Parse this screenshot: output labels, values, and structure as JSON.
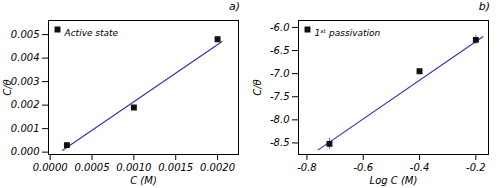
{
  "chart_data": [
    {
      "type": "scatter",
      "title": "a)",
      "xlabel": "C (M)",
      "ylabel": "C/θ",
      "series": [
        {
          "type": "line",
          "color": "#3333bb",
          "x": [
            0.00015,
            0.00205
          ],
          "values": [
            8e-05,
            0.0047
          ]
        },
        {
          "name": "Active state",
          "type": "scatter",
          "marker": "square",
          "color": "#111111",
          "x": [
            0.0002,
            0.001,
            0.002
          ],
          "values": [
            0.0003,
            0.0019,
            0.0048
          ],
          "errors": [
            8e-05,
            5e-05,
            0.00012
          ],
          "error_color": "#bb44bb"
        }
      ],
      "xlim": [
        -2e-05,
        0.00225
      ],
      "ylim": [
        -0.0001,
        0.0056
      ],
      "xticks": [
        {
          "value": 0.0,
          "label": "0.0000"
        },
        {
          "value": 0.0005,
          "label": "0.0005"
        },
        {
          "value": 0.001,
          "label": "0.0010"
        },
        {
          "value": 0.0015,
          "label": "0.0015"
        },
        {
          "value": 0.002,
          "label": "0.0020"
        }
      ],
      "yticks": [
        {
          "value": 0.0,
          "label": "0.000"
        },
        0.001,
        0.002,
        0.003,
        0.004,
        0.005
      ],
      "legend": "upper left",
      "grid": false
    },
    {
      "type": "scatter",
      "title": "b)",
      "xlabel": "Log C (M)",
      "ylabel": "C/θ",
      "series": [
        {
          "type": "line",
          "color": "#3333bb",
          "x": [
            -0.76,
            -0.175
          ],
          "values": [
            -8.65,
            -6.2
          ]
        },
        {
          "name": "1ˢᵗ passivation",
          "type": "scatter",
          "marker": "square",
          "color": "#111111",
          "x": [
            -0.72,
            -0.4,
            -0.2
          ],
          "values": [
            -8.52,
            -6.95,
            -6.27
          ],
          "errors": [
            0.12,
            0.04,
            0.1
          ],
          "error_color": "#bb44bb"
        }
      ],
      "xlim": [
        -0.83,
        -0.155
      ],
      "ylim": [
        -8.75,
        -5.85
      ],
      "xticks": [
        -0.8,
        -0.6,
        -0.4,
        -0.2
      ],
      "yticks": [
        -8.5,
        {
          "value": -8.0,
          "label": "-8.0"
        },
        -7.5,
        {
          "value": -7.0,
          "label": "-7.0"
        },
        -6.5,
        {
          "value": -6.0,
          "label": "-6.0"
        }
      ],
      "legend": "upper left",
      "grid": false
    }
  ]
}
